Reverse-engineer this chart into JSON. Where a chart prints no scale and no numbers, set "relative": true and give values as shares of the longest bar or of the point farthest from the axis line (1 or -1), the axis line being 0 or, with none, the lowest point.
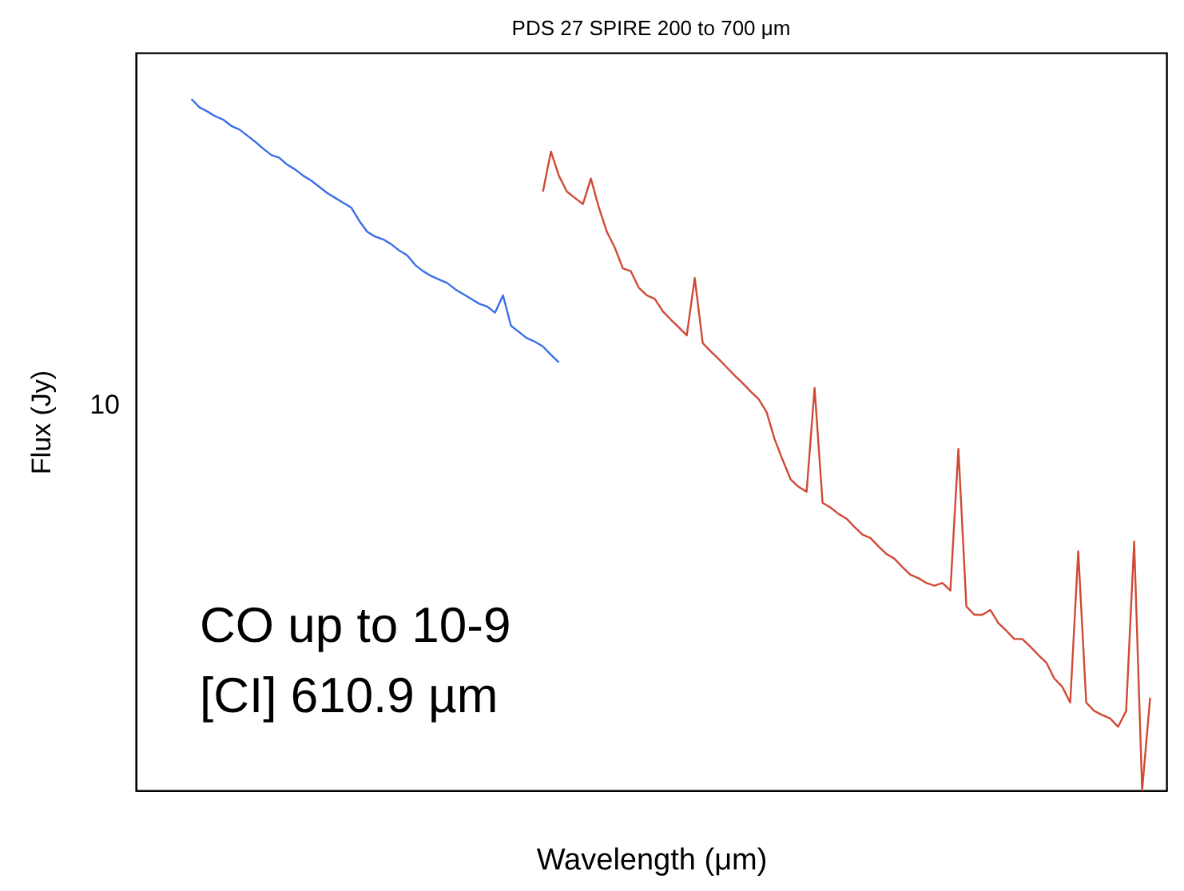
{
  "chart_data": {
    "type": "line",
    "title": "PDS 27 SPIRE 200 to 700 μm",
    "xlabel": "Wavelength (μm)",
    "ylabel": "Flux (Jy)",
    "relative": true,
    "legend": false,
    "grid": false,
    "annotations": [
      "10",
      "CO up to 10-9",
      "[CI] 610.9 µm"
    ],
    "categories": [
      null,
      null,
      null,
      null,
      null,
      null,
      null,
      null,
      null,
      null,
      null,
      null,
      null,
      null,
      null,
      null,
      null,
      null,
      null,
      null,
      null,
      null,
      null,
      null,
      null,
      null,
      null,
      null,
      null,
      null,
      null,
      null,
      null,
      null,
      null,
      null,
      null,
      null,
      null,
      null,
      null,
      null,
      null,
      null,
      null,
      null,
      null,
      null,
      null,
      null,
      null,
      null,
      null,
      null,
      null,
      null,
      null,
      null,
      null,
      null,
      null,
      null,
      null,
      null,
      null,
      null,
      null,
      null,
      null,
      null,
      null,
      null,
      null,
      null,
      null,
      null,
      null,
      null,
      null,
      null,
      null,
      null,
      null,
      null,
      null,
      null,
      null,
      null,
      null,
      null,
      null,
      null,
      null,
      null,
      null,
      null,
      null,
      null,
      null,
      null,
      null,
      null,
      null,
      null,
      null,
      null,
      null,
      null,
      null,
      null,
      null,
      null,
      null,
      null,
      null,
      null,
      null,
      null,
      null,
      null,
      null
    ],
    "series": [
      {
        "color": "#3a6fe8",
        "values": [
          1.0,
          0.988,
          0.982,
          0.975,
          0.97,
          0.961,
          0.956,
          0.947,
          0.938,
          0.928,
          0.919,
          0.915,
          0.905,
          0.898,
          0.889,
          0.882,
          0.873,
          0.864,
          0.857,
          0.85,
          0.843,
          0.824,
          0.808,
          0.801,
          0.797,
          0.79,
          0.781,
          0.774,
          0.76,
          0.751,
          0.744,
          0.739,
          0.734,
          0.725,
          0.718,
          0.711,
          0.704,
          0.7,
          0.691,
          0.716,
          0.672,
          0.663,
          0.654,
          0.649,
          0.642,
          0.63,
          0.619,
          null,
          null,
          null,
          null,
          null,
          null,
          null,
          null,
          null,
          null,
          null,
          null,
          null,
          null,
          null,
          null,
          null,
          null,
          null,
          null,
          null,
          null,
          null,
          null,
          null,
          null,
          null,
          null,
          null,
          null,
          null,
          null,
          null,
          null,
          null,
          null,
          null,
          null,
          null,
          null,
          null,
          null,
          null,
          null,
          null,
          null,
          null,
          null,
          null,
          null,
          null,
          null,
          null,
          null,
          null,
          null,
          null,
          null,
          null,
          null,
          null,
          null,
          null,
          null,
          null,
          null,
          null,
          null,
          null,
          null,
          null,
          null,
          null,
          null
        ]
      },
      {
        "color": "#d04a35",
        "values": [
          null,
          null,
          null,
          null,
          null,
          null,
          null,
          null,
          null,
          null,
          null,
          null,
          null,
          null,
          null,
          null,
          null,
          null,
          null,
          null,
          null,
          null,
          null,
          null,
          null,
          null,
          null,
          null,
          null,
          null,
          null,
          null,
          null,
          null,
          null,
          null,
          null,
          null,
          null,
          null,
          null,
          null,
          null,
          null,
          0.866,
          0.924,
          0.889,
          0.866,
          0.857,
          0.848,
          0.885,
          0.843,
          0.808,
          0.785,
          0.755,
          0.751,
          0.727,
          0.716,
          0.711,
          0.693,
          0.681,
          0.67,
          0.658,
          0.741,
          0.647,
          0.635,
          0.624,
          0.612,
          0.6,
          0.589,
          0.577,
          0.566,
          0.547,
          0.508,
          0.478,
          0.45,
          0.439,
          0.432,
          0.582,
          0.416,
          0.409,
          0.4,
          0.393,
          0.381,
          0.37,
          0.365,
          0.353,
          0.342,
          0.335,
          0.323,
          0.312,
          0.307,
          0.3,
          0.296,
          0.3,
          0.289,
          0.494,
          0.266,
          0.254,
          0.254,
          0.261,
          0.242,
          0.231,
          0.219,
          0.219,
          0.208,
          0.196,
          0.185,
          0.162,
          0.15,
          0.127,
          0.346,
          0.127,
          0.115,
          0.109,
          0.104,
          0.092,
          0.115,
          0.36,
          0,
          0.134
        ]
      }
    ]
  }
}
